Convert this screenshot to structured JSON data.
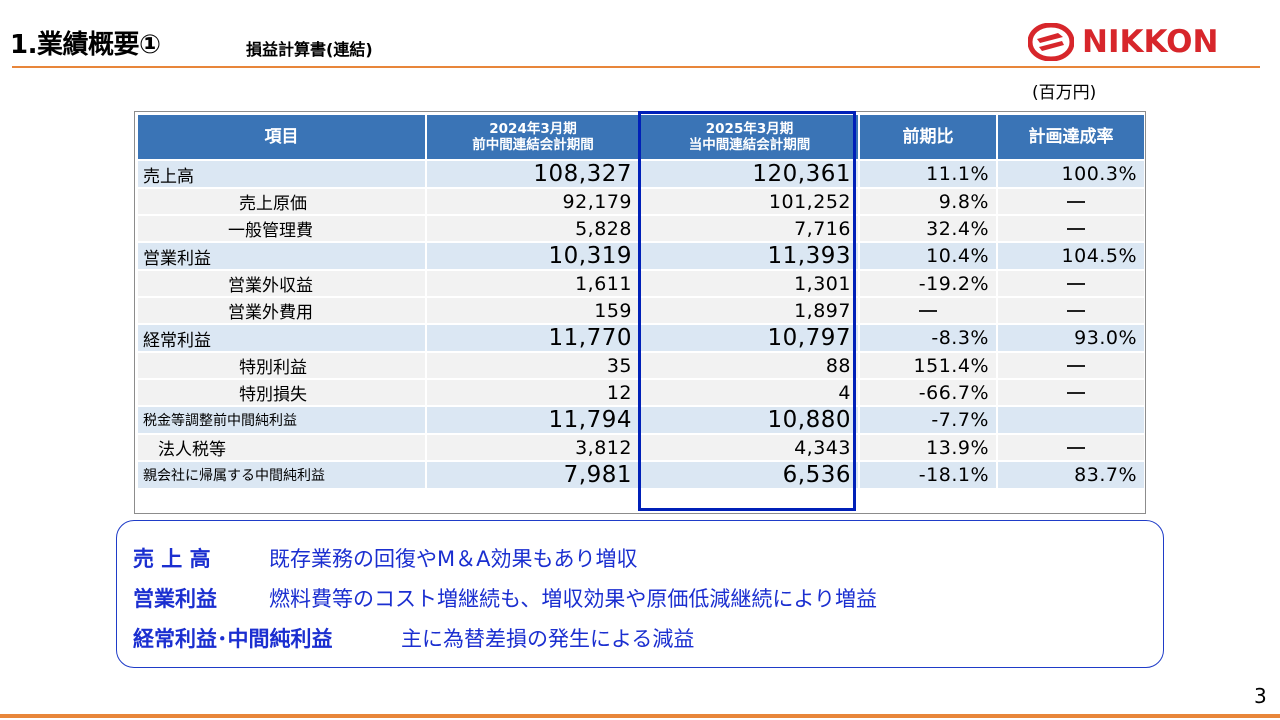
{
  "header": {
    "title": "1.業績概要①",
    "subtitle": "損益計算書(連結)",
    "logo_text": "NIKKON",
    "unit": "(百万円)",
    "page_number": "3"
  },
  "colors": {
    "accent_orange": "#e8863a",
    "header_blue": "#3a74b6",
    "highlight_row": "#dbe7f3",
    "frame_blue": "#0020b8",
    "logo_red": "#d7262b",
    "summary_text": "#1b2fd0"
  },
  "table": {
    "headers": {
      "item": "項目",
      "prev_line1": "2024年3月期",
      "prev_line2": "前中間連結会計期間",
      "curr_line1": "2025年3月期",
      "curr_line2": "当中間連結会計期間",
      "yoy": "前期比",
      "plan": "計画達成率"
    },
    "rows": [
      {
        "label": "売上高",
        "prev": "108,327",
        "curr": "120,361",
        "yoy": "11.1%",
        "plan": "100.3%"
      },
      {
        "label": "売上原価",
        "prev": "92,179",
        "curr": "101,252",
        "yoy": "9.8%",
        "plan": "—"
      },
      {
        "label": "一般管理費",
        "prev": "5,828",
        "curr": "7,716",
        "yoy": "32.4%",
        "plan": "—"
      },
      {
        "label": "営業利益",
        "prev": "10,319",
        "curr": "11,393",
        "yoy": "10.4%",
        "plan": "104.5%"
      },
      {
        "label": "営業外収益",
        "prev": "1,611",
        "curr": "1,301",
        "yoy": "-19.2%",
        "plan": "—"
      },
      {
        "label": "営業外費用",
        "prev": "159",
        "curr": "1,897",
        "yoy": "—",
        "plan": "—"
      },
      {
        "label": "経常利益",
        "prev": "11,770",
        "curr": "10,797",
        "yoy": "-8.3%",
        "plan": "93.0%"
      },
      {
        "label": "特別利益",
        "prev": "35",
        "curr": "88",
        "yoy": "151.4%",
        "plan": "—"
      },
      {
        "label": "特別損失",
        "prev": "12",
        "curr": "4",
        "yoy": "-66.7%",
        "plan": "—"
      },
      {
        "label": "税金等調整前中間純利益",
        "prev": "11,794",
        "curr": "10,880",
        "yoy": "-7.7%",
        "plan": ""
      },
      {
        "label": "法人税等",
        "prev": "3,812",
        "curr": "4,343",
        "yoy": "13.9%",
        "plan": "—"
      },
      {
        "label": "親会社に帰属する中間純利益",
        "prev": "7,981",
        "curr": "6,536",
        "yoy": "-18.1%",
        "plan": "83.7%"
      }
    ]
  },
  "summary": [
    {
      "key": "売 上 高",
      "text": "既存業務の回復やM＆A効果もあり増収"
    },
    {
      "key": "営業利益",
      "text": "燃料費等のコスト増継続も、増収効果や原価低減継続により増益"
    },
    {
      "key": "経常利益･中間純利益",
      "text": "主に為替差損の発生による減益"
    }
  ]
}
